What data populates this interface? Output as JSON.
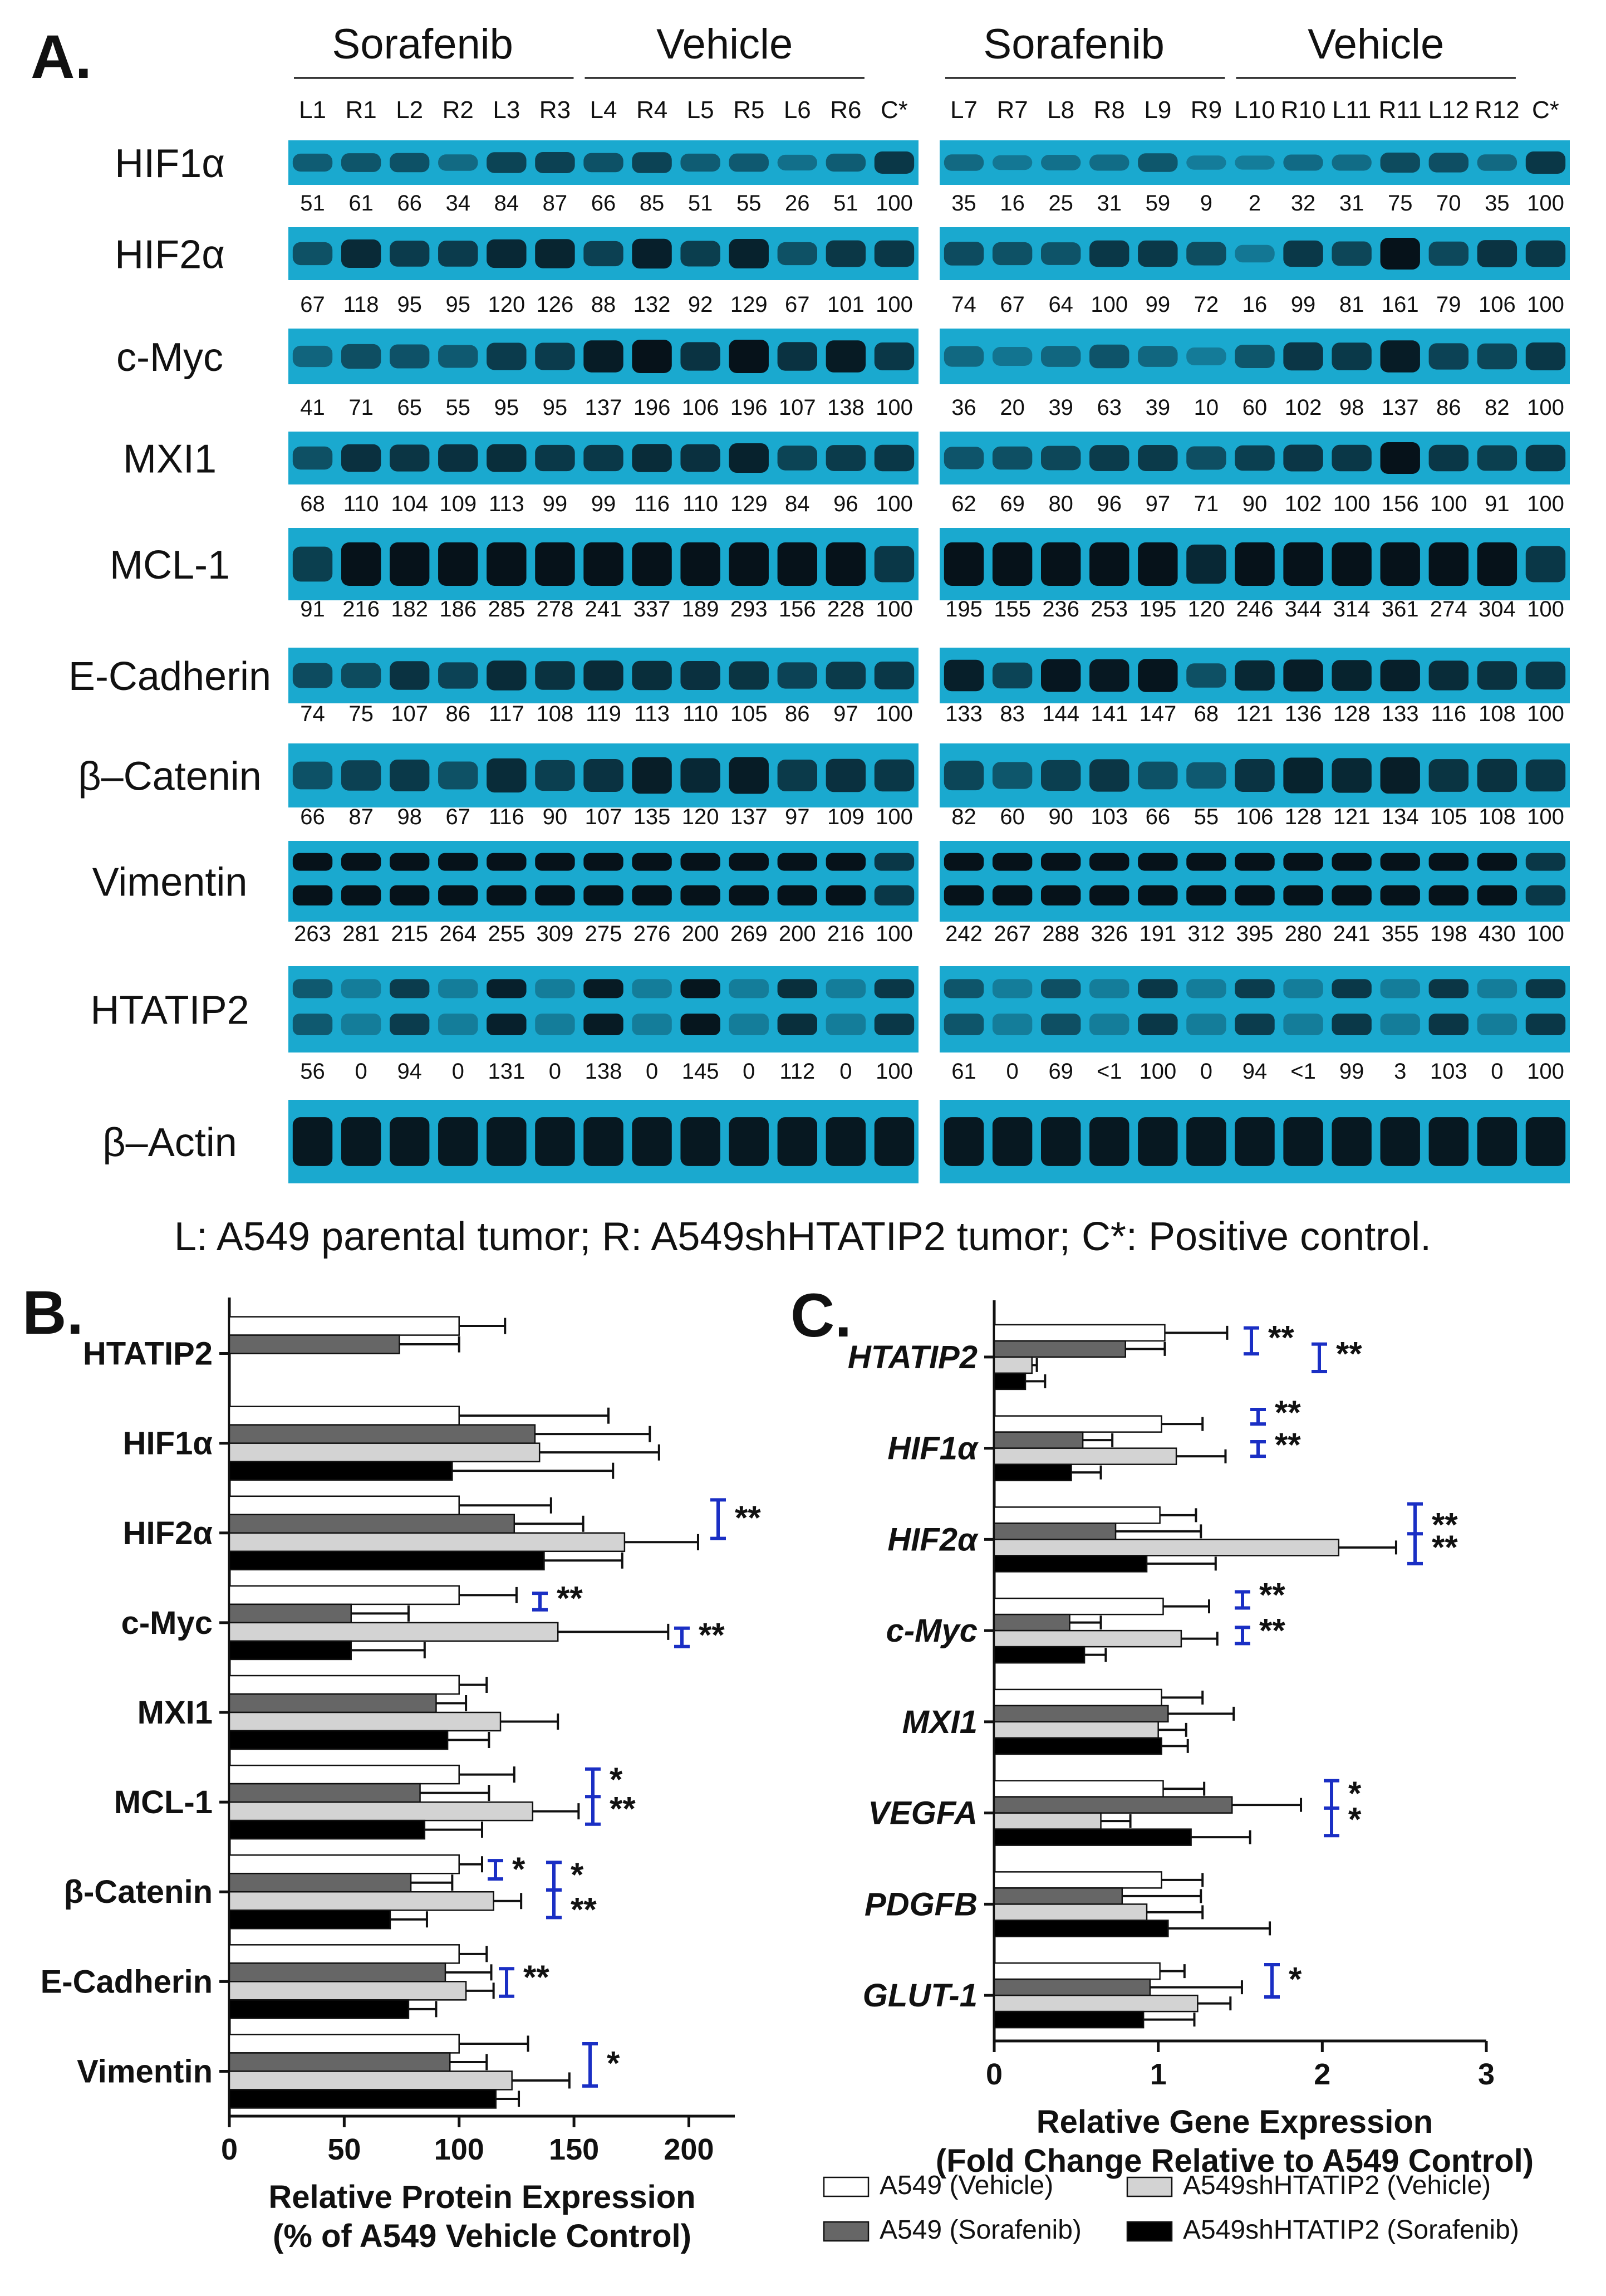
{
  "panel_a": {
    "letter": "A.",
    "left": {
      "groups": [
        "Sorafenib",
        "Vehicle"
      ],
      "lanes": [
        "L1",
        "R1",
        "L2",
        "R2",
        "L3",
        "R3",
        "L4",
        "R4",
        "L5",
        "R5",
        "L6",
        "R6",
        "C*"
      ]
    },
    "right": {
      "groups": [
        "Sorafenib",
        "Vehicle"
      ],
      "lanes": [
        "L7",
        "R7",
        "L8",
        "R8",
        "L9",
        "R9",
        "L10",
        "R10",
        "L11",
        "R11",
        "L12",
        "R12",
        "C*"
      ]
    },
    "blots": [
      {
        "label": "HIF1α",
        "left": [
          "51",
          "61",
          "66",
          "34",
          "84",
          "87",
          "66",
          "85",
          "51",
          "55",
          "26",
          "51",
          "100"
        ],
        "right": [
          "35",
          "16",
          "25",
          "31",
          "59",
          "9",
          "2",
          "32",
          "31",
          "75",
          "70",
          "35",
          "100"
        ]
      },
      {
        "label": "HIF2α",
        "left": [
          "67",
          "118",
          "95",
          "95",
          "120",
          "126",
          "88",
          "132",
          "92",
          "129",
          "67",
          "101",
          "100"
        ],
        "right": [
          "74",
          "67",
          "64",
          "100",
          "99",
          "72",
          "16",
          "99",
          "81",
          "161",
          "79",
          "106",
          "100"
        ]
      },
      {
        "label": "c-Myc",
        "left": [
          "41",
          "71",
          "65",
          "55",
          "95",
          "95",
          "137",
          "196",
          "106",
          "196",
          "107",
          "138",
          "100"
        ],
        "right": [
          "36",
          "20",
          "39",
          "63",
          "39",
          "10",
          "60",
          "102",
          "98",
          "137",
          "86",
          "82",
          "100"
        ]
      },
      {
        "label": "MXI1",
        "left": [
          "68",
          "110",
          "104",
          "109",
          "113",
          "99",
          "99",
          "116",
          "110",
          "129",
          "84",
          "96",
          "100"
        ],
        "right": [
          "62",
          "69",
          "80",
          "96",
          "97",
          "71",
          "90",
          "102",
          "100",
          "156",
          "100",
          "91",
          "100"
        ]
      },
      {
        "label": "MCL-1",
        "left": [
          "91",
          "216",
          "182",
          "186",
          "285",
          "278",
          "241",
          "337",
          "189",
          "293",
          "156",
          "228",
          "100"
        ],
        "right": [
          "195",
          "155",
          "236",
          "253",
          "195",
          "120",
          "246",
          "344",
          "314",
          "361",
          "274",
          "304",
          "100"
        ]
      },
      {
        "label": "E-Cadherin",
        "left": [
          "74",
          "75",
          "107",
          "86",
          "117",
          "108",
          "119",
          "113",
          "110",
          "105",
          "86",
          "97",
          "100"
        ],
        "right": [
          "133",
          "83",
          "144",
          "141",
          "147",
          "68",
          "121",
          "136",
          "128",
          "133",
          "116",
          "108",
          "100"
        ]
      },
      {
        "label": "β–Catenin",
        "left": [
          "66",
          "87",
          "98",
          "67",
          "116",
          "90",
          "107",
          "135",
          "120",
          "137",
          "97",
          "109",
          "100"
        ],
        "right": [
          "82",
          "60",
          "90",
          "103",
          "66",
          "55",
          "106",
          "128",
          "121",
          "134",
          "105",
          "108",
          "100"
        ]
      },
      {
        "label": "Vimentin",
        "left": [
          "263",
          "281",
          "215",
          "264",
          "255",
          "309",
          "275",
          "276",
          "200",
          "269",
          "200",
          "216",
          "100"
        ],
        "right": [
          "242",
          "267",
          "288",
          "326",
          "191",
          "312",
          "395",
          "280",
          "241",
          "355",
          "198",
          "430",
          "100"
        ]
      },
      {
        "label": "HTATIP2",
        "left": [
          "56",
          "0",
          "94",
          "0",
          "131",
          "0",
          "138",
          "0",
          "145",
          "0",
          "112",
          "0",
          "100"
        ],
        "right": [
          "61",
          "0",
          "69",
          "<1",
          "100",
          "0",
          "94",
          "<1",
          "99",
          "3",
          "103",
          "0",
          "100"
        ]
      },
      {
        "label": "β–Actin",
        "left": [],
        "right": []
      }
    ],
    "caption": "L: A549 parental tumor; R: A549shHTATIP2 tumor; C*: Positive control.",
    "blot_color": "#1aa9cf"
  },
  "series_names": [
    "A549 (Vehicle)",
    "A549shHTATIP2 (Vehicle)",
    "A549 (Sorafenib)",
    "A549shHTATIP2 (Sorafenib)"
  ],
  "series_colors": [
    "#ffffff",
    "#d3d3d3",
    "#666666",
    "#000000"
  ],
  "bracket_color": "#1a2fc4",
  "star_color": "#c0121c",
  "chart_data": [
    {
      "type": "bar",
      "panel": "B.",
      "orientation": "horizontal",
      "categories": [
        "HTATIP2",
        "HIF1α",
        "HIF2α",
        "c-Myc",
        "MXI1",
        "MCL-1",
        "β-Catenin",
        "E-Cadherin",
        "Vimentin"
      ],
      "series": [
        {
          "name": "A549 (Vehicle)",
          "values": [
            100,
            100,
            100,
            100,
            100,
            100,
            100,
            100,
            100
          ],
          "errors": [
            20,
            65,
            40,
            25,
            12,
            24,
            10,
            12,
            30
          ]
        },
        {
          "name": "A549 (Sorafenib)",
          "values": [
            74,
            133,
            124,
            53,
            90,
            83,
            79,
            94,
            96
          ],
          "errors": [
            26,
            50,
            30,
            25,
            13,
            30,
            18,
            20,
            16
          ]
        },
        {
          "name": "A549shHTATIP2 (Vehicle)",
          "values": [
            null,
            135,
            172,
            143,
            118,
            132,
            115,
            103,
            123
          ],
          "errors": [
            null,
            52,
            32,
            48,
            25,
            20,
            12,
            12,
            25
          ]
        },
        {
          "name": "A549shHTATIP2 (Sorafenib)",
          "values": [
            null,
            97,
            137,
            53,
            95,
            85,
            70,
            78,
            116
          ],
          "errors": [
            null,
            70,
            34,
            32,
            18,
            25,
            16,
            12,
            10
          ]
        }
      ],
      "annotations": [
        {
          "category": "HIF2α",
          "marks": [
            "**"
          ]
        },
        {
          "category": "c-Myc",
          "marks": [
            "**",
            "**"
          ]
        },
        {
          "category": "MCL-1",
          "marks": [
            "*",
            "**"
          ]
        },
        {
          "category": "β-Catenin",
          "marks": [
            "*",
            "*",
            "**"
          ]
        },
        {
          "category": "E-Cadherin",
          "marks": [
            "**"
          ]
        },
        {
          "category": "Vimentin",
          "marks": [
            "*"
          ]
        }
      ],
      "xlim": [
        0,
        220
      ],
      "xticks": [
        0,
        50,
        100,
        150,
        200
      ],
      "xlabel": [
        "Relative Protein Expression",
        "(% of A549 Vehicle Control)"
      ]
    },
    {
      "type": "bar",
      "panel": "C.",
      "orientation": "horizontal",
      "categories": [
        "HTATIP2",
        "HIF1α",
        "HIF2α",
        "c-Myc",
        "MXI1",
        "VEGFA",
        "PDGFB",
        "GLUT-1"
      ],
      "series": [
        {
          "name": "A549 (Vehicle)",
          "values": [
            1.04,
            1.02,
            1.01,
            1.03,
            1.02,
            1.03,
            1.02,
            1.01
          ],
          "errors": [
            0.38,
            0.25,
            0.22,
            0.28,
            0.25,
            0.25,
            0.25,
            0.15
          ]
        },
        {
          "name": "A549 (Sorafenib)",
          "values": [
            0.8,
            0.54,
            0.74,
            0.46,
            1.06,
            1.45,
            0.78,
            0.95
          ],
          "errors": [
            0.24,
            0.18,
            0.52,
            0.19,
            0.4,
            0.42,
            0.48,
            0.56
          ]
        },
        {
          "name": "A549shHTATIP2 (Vehicle)",
          "values": [
            0.23,
            1.11,
            2.1,
            1.14,
            1.0,
            0.65,
            0.93,
            1.24
          ],
          "errors": [
            0.03,
            0.3,
            0.35,
            0.22,
            0.17,
            0.18,
            0.34,
            0.2
          ]
        },
        {
          "name": "A549shHTATIP2 (Sorafenib)",
          "values": [
            0.19,
            0.47,
            0.93,
            0.55,
            1.02,
            1.2,
            1.06,
            0.91
          ],
          "errors": [
            0.12,
            0.18,
            0.42,
            0.13,
            0.16,
            0.36,
            0.62,
            0.31
          ]
        }
      ],
      "annotations": [
        {
          "category": "HTATIP2",
          "marks": [
            "**",
            "**"
          ]
        },
        {
          "category": "HIF1α",
          "marks": [
            "**",
            "**"
          ]
        },
        {
          "category": "HIF2α",
          "marks": [
            "**",
            "**"
          ]
        },
        {
          "category": "c-Myc",
          "marks": [
            "**",
            "**"
          ]
        },
        {
          "category": "VEGFA",
          "marks": [
            "*",
            "*"
          ]
        },
        {
          "category": "GLUT-1",
          "marks": [
            "*"
          ]
        }
      ],
      "xlim": [
        0,
        3
      ],
      "xticks": [
        0,
        1,
        2,
        3
      ],
      "xlabel": [
        "Relative Gene Expression",
        "(Fold Change Relative to A549 Control)"
      ]
    }
  ]
}
